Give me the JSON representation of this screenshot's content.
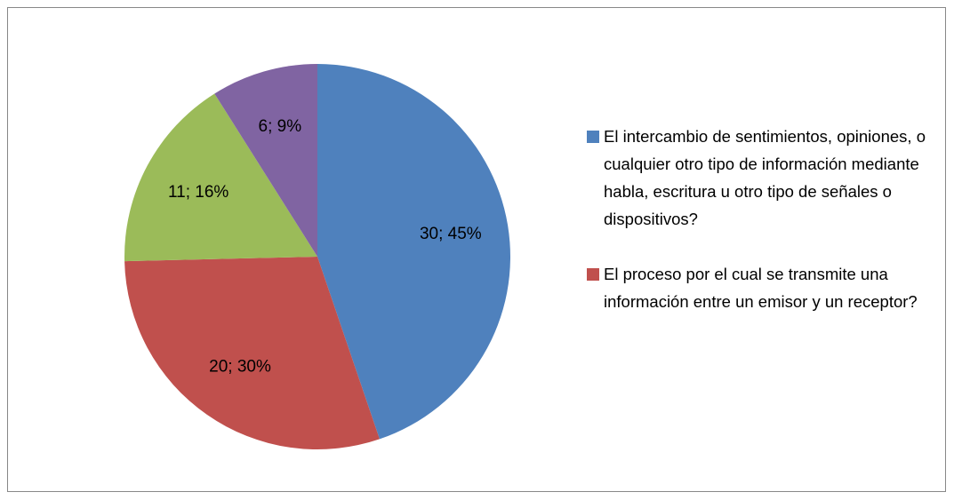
{
  "chart_data": {
    "type": "pie",
    "categories": [
      "El intercambio de sentimientos, opiniones, o cualquier otro tipo de información mediante habla, escritura u otro tipo de señales o dispositivos?",
      "El proceso por el cual se transmite una información entre un emisor y un receptor?",
      null,
      null
    ],
    "values": [
      30,
      20,
      11,
      6
    ],
    "value_labels": [
      "30; 45%",
      "20; 30%",
      "11; 16%",
      "6; 9%"
    ],
    "colors": [
      "#4f81bd",
      "#c0504d",
      "#9bbb59",
      "#8064a2"
    ],
    "legend": "right"
  }
}
